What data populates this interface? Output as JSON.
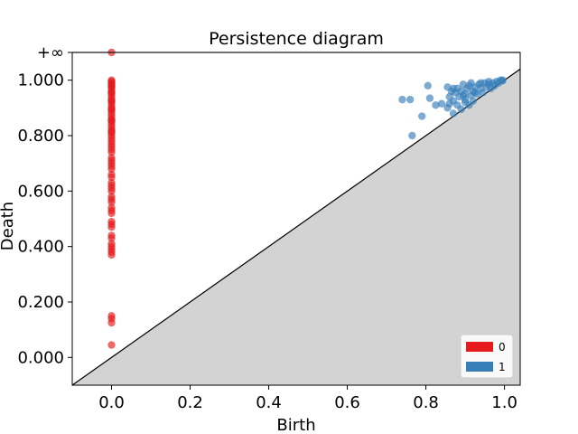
{
  "chart_data": {
    "type": "scatter",
    "title": "Persistence diagram",
    "xlabel": "Birth",
    "ylabel": "Death",
    "xlim": [
      -0.1,
      1.04
    ],
    "ylim": [
      -0.1,
      1.1
    ],
    "inf_label": "+∞",
    "inf_value": 1.1,
    "x_ticks": [
      0.0,
      0.2,
      0.4,
      0.6,
      0.8,
      1.0
    ],
    "x_tick_labels": [
      "0.0",
      "0.2",
      "0.4",
      "0.6",
      "0.8",
      "1.0"
    ],
    "y_ticks": [
      0.0,
      0.2,
      0.4,
      0.6,
      0.8,
      1.0
    ],
    "y_tick_labels": [
      "0.000",
      "0.200",
      "0.400",
      "0.600",
      "0.800",
      "1.000"
    ],
    "grid": false,
    "legend_position": "bottom-right",
    "diagonal": true,
    "series": [
      {
        "name": "0",
        "color": "#e41a1c",
        "points": [
          [
            0,
            1.1
          ],
          [
            0,
            1.0
          ],
          [
            0,
            0.995
          ],
          [
            0,
            0.99
          ],
          [
            0,
            0.985
          ],
          [
            0,
            0.98
          ],
          [
            0,
            0.975
          ],
          [
            0,
            0.97
          ],
          [
            0,
            0.96
          ],
          [
            0,
            0.955
          ],
          [
            0,
            0.95
          ],
          [
            0,
            0.94
          ],
          [
            0,
            0.93
          ],
          [
            0,
            0.925
          ],
          [
            0,
            0.92
          ],
          [
            0,
            0.91
          ],
          [
            0,
            0.9
          ],
          [
            0,
            0.895
          ],
          [
            0,
            0.89
          ],
          [
            0,
            0.88
          ],
          [
            0,
            0.87
          ],
          [
            0,
            0.86
          ],
          [
            0,
            0.855
          ],
          [
            0,
            0.85
          ],
          [
            0,
            0.84
          ],
          [
            0,
            0.83
          ],
          [
            0,
            0.82
          ],
          [
            0,
            0.815
          ],
          [
            0,
            0.81
          ],
          [
            0,
            0.8
          ],
          [
            0,
            0.79
          ],
          [
            0,
            0.78
          ],
          [
            0,
            0.77
          ],
          [
            0,
            0.76
          ],
          [
            0,
            0.75
          ],
          [
            0,
            0.74
          ],
          [
            0,
            0.72
          ],
          [
            0,
            0.71
          ],
          [
            0,
            0.7
          ],
          [
            0,
            0.69
          ],
          [
            0,
            0.68
          ],
          [
            0,
            0.66
          ],
          [
            0,
            0.65
          ],
          [
            0,
            0.63
          ],
          [
            0,
            0.62
          ],
          [
            0,
            0.61
          ],
          [
            0,
            0.6
          ],
          [
            0,
            0.58
          ],
          [
            0,
            0.57
          ],
          [
            0,
            0.56
          ],
          [
            0,
            0.54
          ],
          [
            0,
            0.53
          ],
          [
            0,
            0.52
          ],
          [
            0,
            0.49
          ],
          [
            0,
            0.48
          ],
          [
            0,
            0.47
          ],
          [
            0,
            0.44
          ],
          [
            0,
            0.43
          ],
          [
            0,
            0.41
          ],
          [
            0,
            0.4
          ],
          [
            0,
            0.39
          ],
          [
            0,
            0.38
          ],
          [
            0,
            0.37
          ],
          [
            0,
            0.15
          ],
          [
            0,
            0.14
          ],
          [
            0,
            0.125
          ],
          [
            0,
            0.045
          ]
        ]
      },
      {
        "name": "1",
        "color": "#377eb8",
        "points": [
          [
            0.74,
            0.93
          ],
          [
            0.76,
            0.93
          ],
          [
            0.765,
            0.8
          ],
          [
            0.79,
            0.87
          ],
          [
            0.805,
            0.98
          ],
          [
            0.81,
            0.935
          ],
          [
            0.825,
            0.91
          ],
          [
            0.84,
            0.915
          ],
          [
            0.855,
            0.975
          ],
          [
            0.855,
            0.9
          ],
          [
            0.86,
            0.94
          ],
          [
            0.865,
            0.96
          ],
          [
            0.87,
            0.925
          ],
          [
            0.87,
            0.88
          ],
          [
            0.875,
            0.955
          ],
          [
            0.88,
            0.91
          ],
          [
            0.88,
            0.97
          ],
          [
            0.885,
            0.94
          ],
          [
            0.89,
            0.895
          ],
          [
            0.89,
            0.96
          ],
          [
            0.895,
            0.985
          ],
          [
            0.9,
            0.93
          ],
          [
            0.9,
            0.95
          ],
          [
            0.905,
            0.97
          ],
          [
            0.91,
            0.91
          ],
          [
            0.91,
            0.98
          ],
          [
            0.915,
            0.945
          ],
          [
            0.92,
            0.96
          ],
          [
            0.92,
            0.925
          ],
          [
            0.925,
            0.975
          ],
          [
            0.93,
            0.95
          ],
          [
            0.935,
            0.985
          ],
          [
            0.94,
            0.97
          ],
          [
            0.945,
            0.955
          ],
          [
            0.95,
            0.99
          ],
          [
            0.955,
            0.975
          ],
          [
            0.96,
            0.985
          ],
          [
            0.965,
            0.97
          ],
          [
            0.97,
            0.99
          ],
          [
            0.975,
            0.98
          ],
          [
            0.98,
            0.995
          ],
          [
            0.985,
            0.99
          ],
          [
            0.99,
            1.0
          ],
          [
            0.995,
            0.998
          ],
          [
            0.995,
            1.0
          ],
          [
            0.87,
            0.97
          ],
          [
            0.9,
            0.92
          ],
          [
            0.915,
            0.99
          ],
          [
            0.94,
            0.99
          ],
          [
            0.96,
            0.995
          ],
          [
            0.925,
            0.955
          ],
          [
            0.86,
            0.915
          ],
          [
            0.895,
            0.945
          ]
        ]
      }
    ]
  }
}
